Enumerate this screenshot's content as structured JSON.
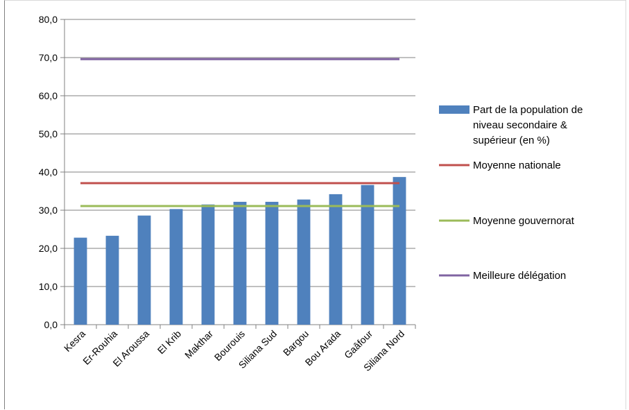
{
  "chart_data": {
    "type": "bar",
    "categories": [
      "Kesra",
      "Er-Rouhia",
      "El Aroussa",
      "El  Krib",
      "Makthar",
      "Bourouis",
      "Siliana Sud",
      "Bargou",
      "Bou Arada",
      "Gaâfour",
      "Siliana Nord"
    ],
    "series": [
      {
        "name": "Part de la population de niveau secondaire & supérieur (en %)",
        "type": "bar",
        "color": "#4f81bd",
        "values": [
          22.8,
          23.3,
          28.6,
          30.3,
          31.5,
          32.2,
          32.2,
          32.8,
          34.2,
          36.6,
          38.7
        ]
      },
      {
        "name": "Moyenne nationale",
        "type": "line",
        "color": "#c0504d",
        "values": [
          37.1,
          37.1,
          37.1,
          37.1,
          37.1,
          37.1,
          37.1,
          37.1,
          37.1,
          37.1,
          37.1
        ]
      },
      {
        "name": "Moyenne gouvernorat",
        "type": "line",
        "color": "#9bbb59",
        "values": [
          31.1,
          31.1,
          31.1,
          31.1,
          31.1,
          31.1,
          31.1,
          31.1,
          31.1,
          31.1,
          31.1
        ]
      },
      {
        "name": "Meilleure délégation",
        "type": "line",
        "color": "#8064a2",
        "values": [
          69.6,
          69.6,
          69.6,
          69.6,
          69.6,
          69.6,
          69.6,
          69.6,
          69.6,
          69.6,
          69.6
        ]
      }
    ],
    "legend": {
      "position": "right",
      "entries": [
        {
          "lines": [
            "Part de la population de",
            "niveau secondaire &",
            "supérieur (en %)"
          ],
          "color": "#4f81bd",
          "marker": "bar"
        },
        {
          "lines": [
            "Moyenne nationale"
          ],
          "color": "#c0504d",
          "marker": "line"
        },
        {
          "lines": [
            "Moyenne gouvernorat"
          ],
          "color": "#9bbb59",
          "marker": "line"
        },
        {
          "lines": [
            "Meilleure délégation"
          ],
          "color": "#8064a2",
          "marker": "line"
        }
      ]
    },
    "yticks": [
      "0,0",
      "10,0",
      "20,0",
      "30,0",
      "40,0",
      "50,0",
      "60,0",
      "70,0",
      "80,0"
    ],
    "ylim": [
      0,
      80
    ],
    "grid": true,
    "gridline_color": "#808080",
    "title": "",
    "xlabel": "",
    "ylabel": ""
  }
}
